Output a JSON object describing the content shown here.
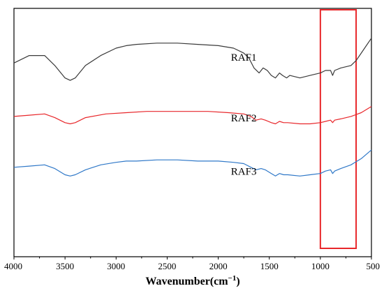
{
  "chart_data": {
    "type": "line",
    "title": "",
    "xlabel": "Wavenumber(cm",
    "xlabel_sup": "−1",
    "xlabel_close": ")",
    "ylabel": "",
    "xlim": [
      4000,
      500
    ],
    "x_reversed": true,
    "ylim": [
      0,
      1
    ],
    "grid": false,
    "x_ticks": [
      4000,
      3500,
      3000,
      2500,
      2000,
      1500,
      1000,
      500
    ],
    "x_tick_labels": [
      "4000",
      "3500",
      "3000",
      "2500",
      "2000",
      "1500",
      "1000",
      "500"
    ],
    "highlight": {
      "x_from": 1000,
      "x_to": 650,
      "color": "#e8262a"
    },
    "series": [
      {
        "name": "RAF1",
        "color": "#3a3a3a",
        "label_at": 1750,
        "label_y": 0.79,
        "points": [
          [
            4000,
            0.78
          ],
          [
            3850,
            0.81
          ],
          [
            3700,
            0.81
          ],
          [
            3600,
            0.77
          ],
          [
            3500,
            0.72
          ],
          [
            3450,
            0.71
          ],
          [
            3400,
            0.72
          ],
          [
            3300,
            0.77
          ],
          [
            3150,
            0.81
          ],
          [
            3000,
            0.84
          ],
          [
            2900,
            0.85
          ],
          [
            2800,
            0.855
          ],
          [
            2600,
            0.86
          ],
          [
            2400,
            0.86
          ],
          [
            2200,
            0.855
          ],
          [
            2000,
            0.85
          ],
          [
            1850,
            0.84
          ],
          [
            1750,
            0.82
          ],
          [
            1700,
            0.8
          ],
          [
            1650,
            0.76
          ],
          [
            1600,
            0.74
          ],
          [
            1560,
            0.76
          ],
          [
            1520,
            0.75
          ],
          [
            1480,
            0.73
          ],
          [
            1440,
            0.72
          ],
          [
            1400,
            0.74
          ],
          [
            1370,
            0.73
          ],
          [
            1330,
            0.72
          ],
          [
            1300,
            0.73
          ],
          [
            1200,
            0.72
          ],
          [
            1100,
            0.73
          ],
          [
            1000,
            0.74
          ],
          [
            950,
            0.75
          ],
          [
            900,
            0.75
          ],
          [
            880,
            0.73
          ],
          [
            860,
            0.75
          ],
          [
            800,
            0.76
          ],
          [
            700,
            0.77
          ],
          [
            650,
            0.79
          ],
          [
            600,
            0.82
          ],
          [
            550,
            0.85
          ],
          [
            500,
            0.88
          ]
        ]
      },
      {
        "name": "RAF2",
        "color": "#e8262a",
        "label_at": 1750,
        "label_y": 0.545,
        "points": [
          [
            4000,
            0.565
          ],
          [
            3850,
            0.57
          ],
          [
            3700,
            0.575
          ],
          [
            3600,
            0.56
          ],
          [
            3500,
            0.54
          ],
          [
            3450,
            0.535
          ],
          [
            3400,
            0.54
          ],
          [
            3300,
            0.56
          ],
          [
            3100,
            0.575
          ],
          [
            2900,
            0.58
          ],
          [
            2700,
            0.585
          ],
          [
            2400,
            0.585
          ],
          [
            2100,
            0.585
          ],
          [
            1900,
            0.58
          ],
          [
            1750,
            0.575
          ],
          [
            1680,
            0.565
          ],
          [
            1630,
            0.55
          ],
          [
            1580,
            0.555
          ],
          [
            1540,
            0.55
          ],
          [
            1480,
            0.54
          ],
          [
            1440,
            0.535
          ],
          [
            1400,
            0.545
          ],
          [
            1360,
            0.54
          ],
          [
            1320,
            0.54
          ],
          [
            1200,
            0.535
          ],
          [
            1100,
            0.535
          ],
          [
            1000,
            0.54
          ],
          [
            950,
            0.545
          ],
          [
            900,
            0.55
          ],
          [
            880,
            0.54
          ],
          [
            860,
            0.55
          ],
          [
            800,
            0.555
          ],
          [
            700,
            0.565
          ],
          [
            600,
            0.58
          ],
          [
            500,
            0.605
          ]
        ]
      },
      {
        "name": "RAF3",
        "color": "#2f78c8",
        "label_at": 1750,
        "label_y": 0.33,
        "points": [
          [
            4000,
            0.36
          ],
          [
            3850,
            0.365
          ],
          [
            3700,
            0.37
          ],
          [
            3600,
            0.355
          ],
          [
            3500,
            0.33
          ],
          [
            3450,
            0.325
          ],
          [
            3400,
            0.33
          ],
          [
            3300,
            0.35
          ],
          [
            3150,
            0.37
          ],
          [
            3000,
            0.38
          ],
          [
            2900,
            0.385
          ],
          [
            2800,
            0.385
          ],
          [
            2600,
            0.39
          ],
          [
            2400,
            0.39
          ],
          [
            2200,
            0.385
          ],
          [
            2000,
            0.385
          ],
          [
            1850,
            0.38
          ],
          [
            1750,
            0.375
          ],
          [
            1680,
            0.36
          ],
          [
            1630,
            0.35
          ],
          [
            1580,
            0.355
          ],
          [
            1540,
            0.35
          ],
          [
            1480,
            0.335
          ],
          [
            1440,
            0.325
          ],
          [
            1400,
            0.335
          ],
          [
            1360,
            0.33
          ],
          [
            1320,
            0.33
          ],
          [
            1200,
            0.325
          ],
          [
            1100,
            0.33
          ],
          [
            1000,
            0.335
          ],
          [
            950,
            0.345
          ],
          [
            900,
            0.35
          ],
          [
            880,
            0.335
          ],
          [
            860,
            0.345
          ],
          [
            800,
            0.355
          ],
          [
            700,
            0.37
          ],
          [
            600,
            0.395
          ],
          [
            500,
            0.43
          ]
        ]
      }
    ]
  }
}
